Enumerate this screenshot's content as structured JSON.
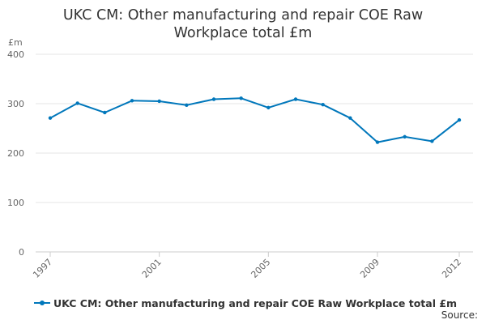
{
  "chart_data": {
    "type": "line",
    "title_lines": [
      "UKC CM: Other manufacturing and repair COE Raw",
      "Workplace total £m"
    ],
    "ylabel": "£m",
    "xlabel": "",
    "ylim": [
      0,
      400
    ],
    "yticks": [
      0,
      100,
      200,
      300,
      400
    ],
    "xlim": [
      1997,
      2012
    ],
    "xticks": [
      "1997",
      "2001",
      "2005",
      "2009",
      "2012"
    ],
    "grid": "horizontal",
    "legend_position": "bottom",
    "series": [
      {
        "name": "UKC CM: Other manufacturing and repair COE Raw Workplace total £m",
        "color": "#0077bb",
        "x": [
          1997,
          1998,
          1999,
          2000,
          2001,
          2002,
          2003,
          2004,
          2005,
          2006,
          2007,
          2008,
          2009,
          2010,
          2011,
          2012
        ],
        "values": [
          271,
          301,
          282,
          306,
          305,
          297,
          309,
          311,
          292,
          309,
          298,
          271,
          222,
          233,
          224,
          267
        ]
      }
    ]
  },
  "legend": {
    "label": "UKC CM: Other manufacturing and repair COE Raw Workplace total £m",
    "icon": "line-with-dot-marker"
  },
  "source_label": "Source:"
}
